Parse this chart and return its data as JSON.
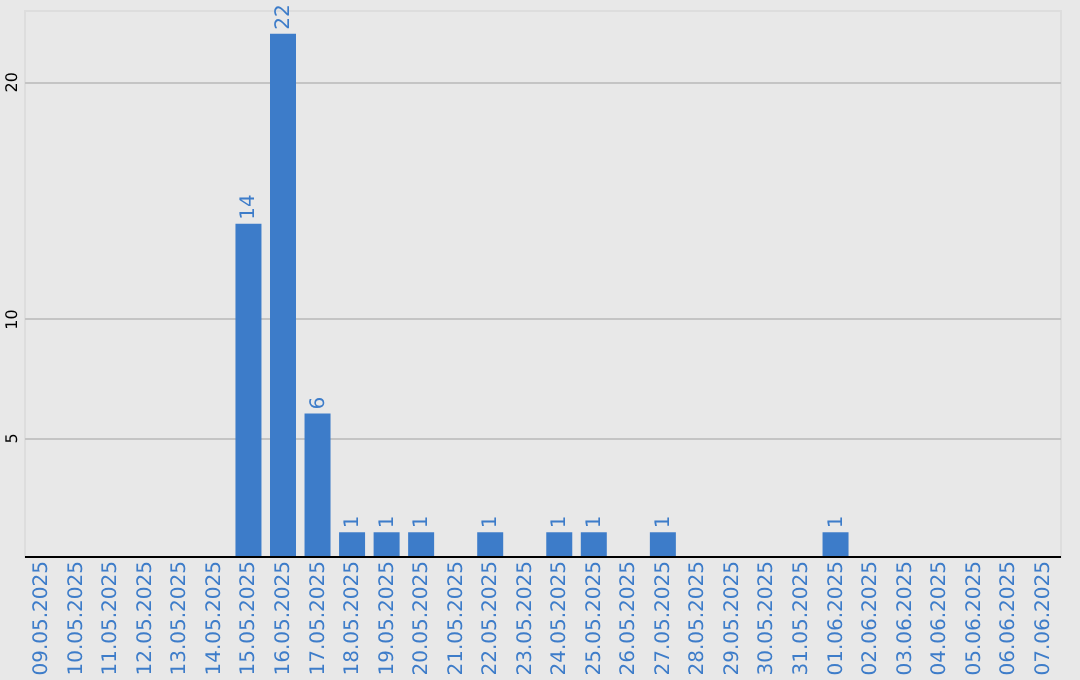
{
  "chart_data": {
    "type": "bar",
    "categories": [
      "09.05.2025",
      "10.05.2025",
      "11.05.2025",
      "12.05.2025",
      "13.05.2025",
      "14.05.2025",
      "15.05.2025",
      "16.05.2025",
      "17.05.2025",
      "18.05.2025",
      "19.05.2025",
      "20.05.2025",
      "21.05.2025",
      "22.05.2025",
      "23.05.2025",
      "24.05.2025",
      "25.05.2025",
      "26.05.2025",
      "27.05.2025",
      "28.05.2025",
      "29.05.2025",
      "30.05.2025",
      "31.05.2025",
      "01.06.2025",
      "02.06.2025",
      "03.06.2025",
      "04.06.2025",
      "05.06.2025",
      "06.06.2025",
      "07.06.2025"
    ],
    "values": [
      0,
      0,
      0,
      0,
      0,
      0,
      14,
      22,
      6,
      1,
      1,
      1,
      0,
      1,
      0,
      1,
      1,
      0,
      1,
      0,
      0,
      0,
      0,
      1,
      0,
      0,
      0,
      0,
      0,
      0
    ],
    "value_labels": [
      null,
      null,
      null,
      null,
      null,
      null,
      "14",
      "22",
      "6",
      "1",
      "1",
      "1",
      null,
      "1",
      null,
      "1",
      "1",
      null,
      "1",
      null,
      null,
      null,
      null,
      "1",
      null,
      null,
      null,
      null,
      null,
      null
    ],
    "color": "#3d7cc9",
    "ylim": [
      0,
      23
    ],
    "yticks": [
      5,
      10,
      20
    ],
    "grid": "y"
  }
}
